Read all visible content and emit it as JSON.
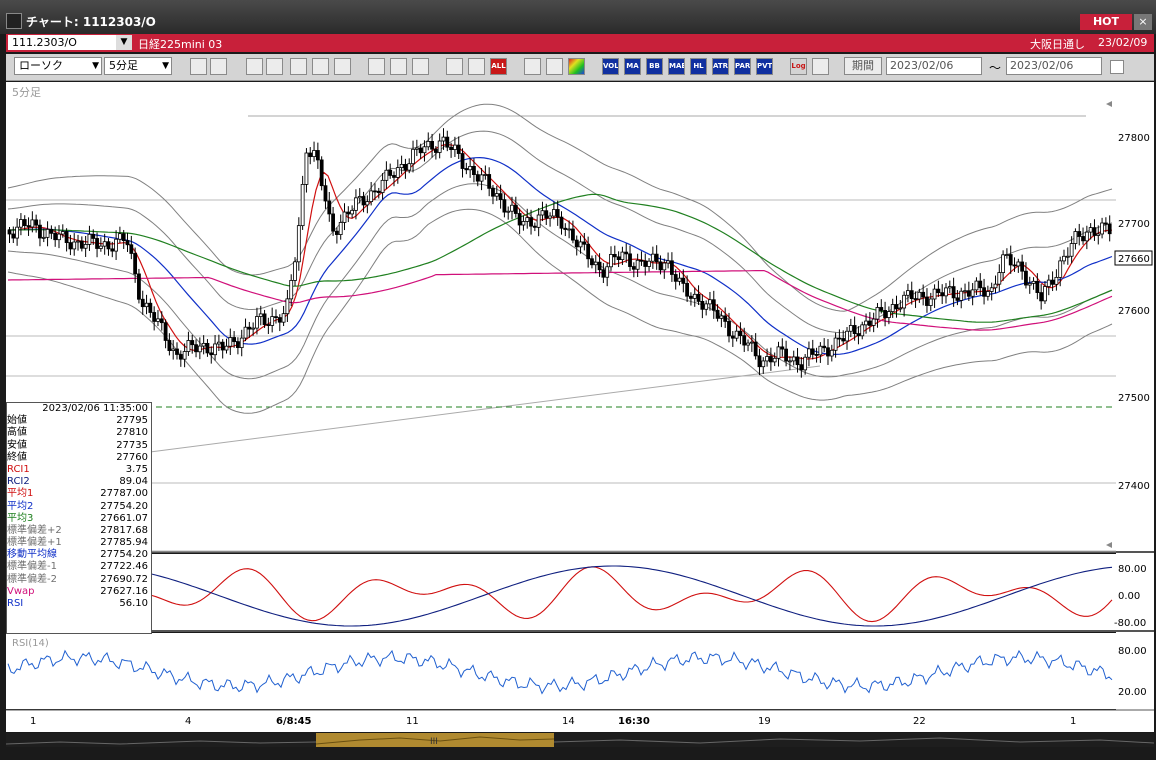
{
  "window": {
    "title": "チャート: 1112303/O",
    "hot_label": "HOT",
    "close_label": "×"
  },
  "infobar": {
    "symbol": "111.2303/O",
    "name": "日経225mini 03",
    "exchange": "大阪日通し",
    "date": "23/02/09"
  },
  "toolbar": {
    "chart_type": "ローソク",
    "interval": "5分足",
    "period_label": "期間",
    "date_from": "2023/02/06",
    "date_to": "2023/02/06",
    "tilde": "〜",
    "indicator_buttons": [
      {
        "label": "VOL",
        "color": "#1030a0"
      },
      {
        "label": "MA",
        "color": "#1030a0"
      },
      {
        "label": "BB",
        "color": "#1030a0"
      },
      {
        "label": "MAE",
        "color": "#1030a0"
      },
      {
        "label": "HL",
        "color": "#1030a0"
      },
      {
        "label": "ATR",
        "color": "#1030a0"
      },
      {
        "label": "PARA",
        "color": "#1030a0"
      },
      {
        "label": "PVT",
        "color": "#1030a0"
      },
      {
        "label": "Log",
        "color": "#d4d4d4"
      }
    ]
  },
  "chart": {
    "panel_label": "5分足",
    "price_axis": [
      "27800",
      "27700",
      "27600",
      "27500",
      "27400"
    ],
    "current_price": "27660",
    "osc_axis": [
      "80.00",
      "0.00",
      "-80.00"
    ],
    "rsi_label": "RSI(14)",
    "rsi_axis": [
      "80.00",
      "20.00"
    ],
    "time_axis": [
      {
        "label": "1",
        "bold": false
      },
      {
        "label": "4",
        "bold": false
      },
      {
        "label": "6/8:45",
        "bold": true
      },
      {
        "label": "11",
        "bold": false
      },
      {
        "label": "14",
        "bold": false
      },
      {
        "label": "16:30",
        "bold": true
      },
      {
        "label": "19",
        "bold": false
      },
      {
        "label": "22",
        "bold": false
      },
      {
        "label": "1",
        "bold": false
      }
    ],
    "colors": {
      "background": "#ffffff",
      "sma1": "#d01010",
      "sma2": "#1030c8",
      "sma3": "#208020",
      "vwap": "#d0107a",
      "bands": "#808080",
      "dashed": "#208020",
      "rci1": "#d01010",
      "rci2": "#102080",
      "rsi": "#2060d0"
    }
  },
  "overlay": {
    "datetime": "2023/02/06 11:35:00",
    "rows": [
      {
        "label": "始値",
        "value": "27795",
        "color": "#000000"
      },
      {
        "label": "高値",
        "value": "27810",
        "color": "#000000"
      },
      {
        "label": "安値",
        "value": "27735",
        "color": "#000000"
      },
      {
        "label": "終値",
        "value": "27760",
        "color": "#000000"
      },
      {
        "label": "RCI1",
        "value": "3.75",
        "color": "#d01010"
      },
      {
        "label": "RCI2",
        "value": "89.04",
        "color": "#102080"
      },
      {
        "label": "平均1",
        "value": "27787.00",
        "color": "#d01010"
      },
      {
        "label": "平均2",
        "value": "27754.20",
        "color": "#1030c8"
      },
      {
        "label": "平均3",
        "value": "27661.07",
        "color": "#208020"
      },
      {
        "label": "標準偏差+2",
        "value": "27817.68",
        "color": "#707070"
      },
      {
        "label": "標準偏差+1",
        "value": "27785.94",
        "color": "#707070"
      },
      {
        "label": "移動平均線",
        "value": "27754.20",
        "color": "#1030c8"
      },
      {
        "label": "標準偏差-1",
        "value": "27722.46",
        "color": "#707070"
      },
      {
        "label": "標準偏差-2",
        "value": "27690.72",
        "color": "#707070"
      },
      {
        "label": "Vwap",
        "value": "27627.16",
        "color": "#d0107a"
      },
      {
        "label": "RSI",
        "value": "56.10",
        "color": "#1030c8"
      }
    ]
  },
  "scrollbar": {
    "thumb_label": "III"
  }
}
